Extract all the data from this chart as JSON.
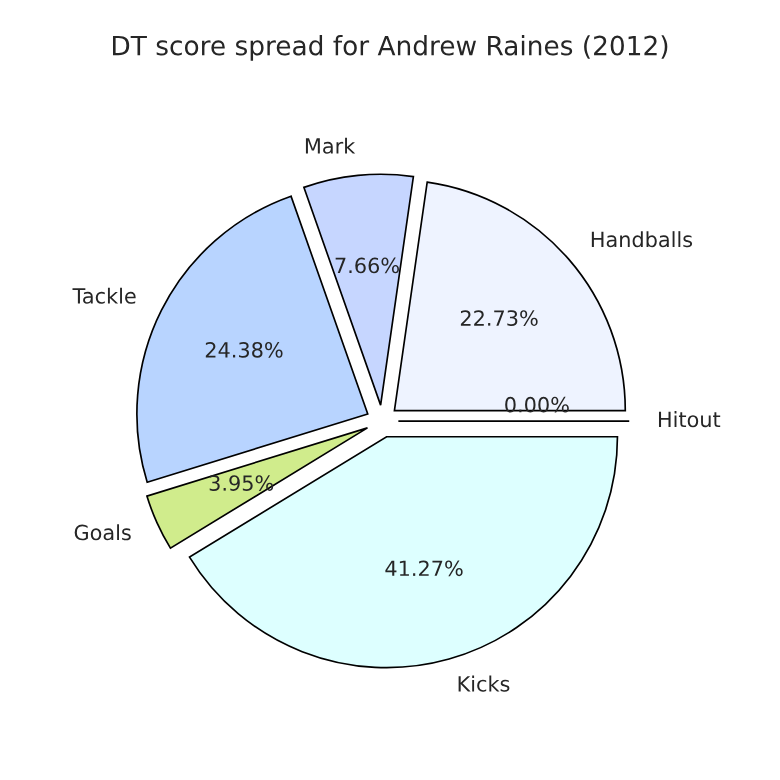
{
  "chart_data": {
    "type": "pie",
    "title": "DT score spread for Andrew Raines (2012)",
    "categories": [
      "Hitout",
      "Handballs",
      "Mark",
      "Tackle",
      "Goals",
      "Kicks"
    ],
    "values": [
      0.0,
      22.73,
      7.66,
      24.38,
      3.95,
      41.27
    ],
    "value_labels": [
      "0.00%",
      "22.73%",
      "7.66%",
      "24.38%",
      "3.95%",
      "41.27%"
    ],
    "colors": [
      "#ffffff",
      "#eef3ff",
      "#c6d6ff",
      "#b8d4ff",
      "#d0ec8c",
      "#ddffff"
    ],
    "legend": false
  }
}
